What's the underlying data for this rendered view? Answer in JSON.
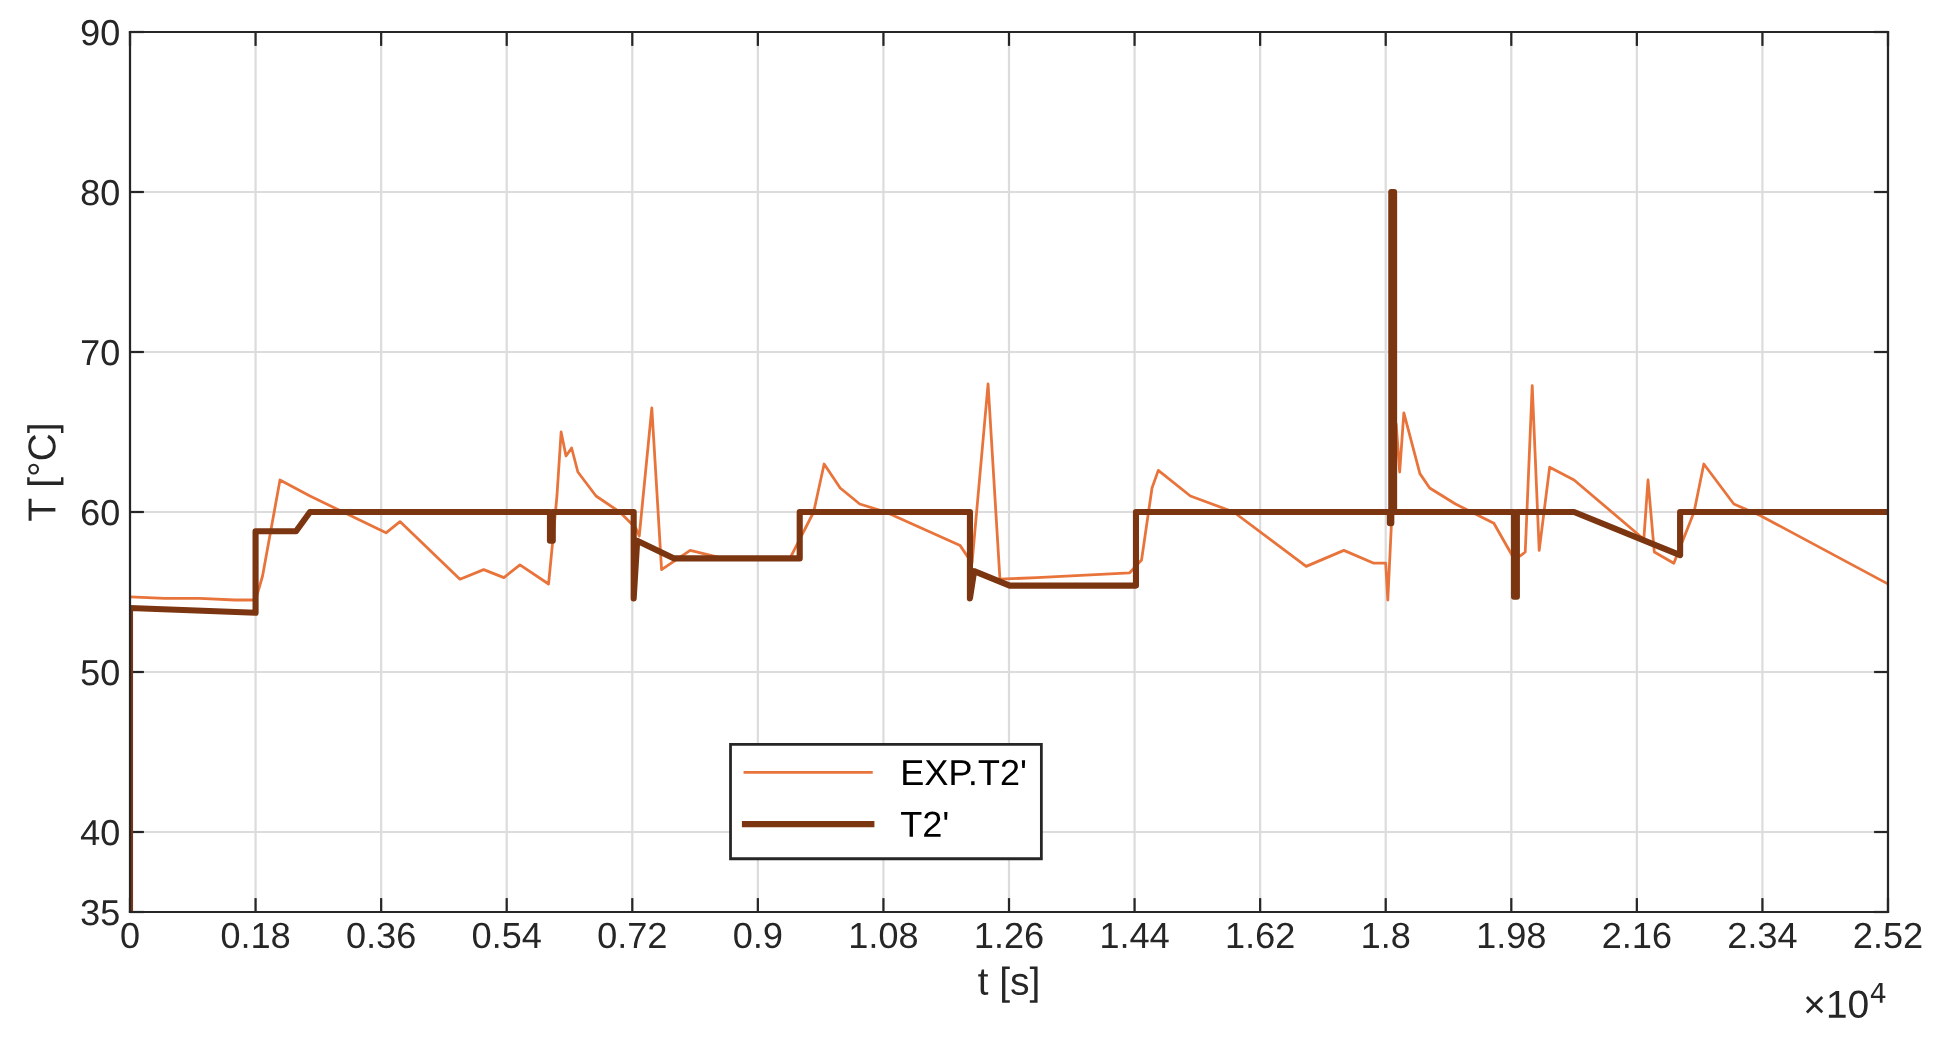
{
  "chart_data": {
    "type": "line",
    "xlabel": "t [s]",
    "ylabel": "T [°C]",
    "annotations": [
      "×10$^{4}$"
    ],
    "xlim": [
      0,
      2.52
    ],
    "xticks": [
      0,
      0.18,
      0.36,
      0.54,
      0.72,
      0.9,
      1.08,
      1.26,
      1.44,
      1.62,
      1.8,
      1.98,
      2.16,
      2.34,
      2.52
    ],
    "ylim": [
      35,
      90
    ],
    "yticks": [
      35,
      40,
      50,
      60,
      70,
      80,
      90
    ],
    "grid": true,
    "legend": "bottom",
    "marker": "none",
    "line_style": "solid",
    "series": [
      {
        "name": "EXP.T2'",
        "color": "#e8743b",
        "x": [
          0,
          0.05,
          0.1,
          0.15,
          0.18,
          0.19,
          0.215,
          0.258,
          0.367,
          0.387,
          0.473,
          0.507,
          0.536,
          0.559,
          0.6,
          0.606,
          0.612,
          0.618,
          0.625,
          0.633,
          0.642,
          0.668,
          0.702,
          0.725,
          0.73,
          0.748,
          0.762,
          0.803,
          0.85,
          0.946,
          0.98,
          0.995,
          1.018,
          1.046,
          1.083,
          1.19,
          1.207,
          1.23,
          1.247,
          1.3,
          1.433,
          1.45,
          1.465,
          1.474,
          1.52,
          1.582,
          1.686,
          1.74,
          1.783,
          1.8,
          1.803,
          1.815,
          1.82,
          1.826,
          1.849,
          1.863,
          1.9,
          1.955,
          1.985,
          2.0,
          2.01,
          2.02,
          2.035,
          2.07,
          2.17,
          2.176,
          2.185,
          2.213,
          2.242,
          2.256,
          2.299,
          2.336,
          2.52
        ],
        "values": [
          54.7,
          54.6,
          54.6,
          54.5,
          54.5,
          56.0,
          62.0,
          61.0,
          58.7,
          59.4,
          55.8,
          56.4,
          55.9,
          56.7,
          55.5,
          58.2,
          61.0,
          65.0,
          63.5,
          64.0,
          62.5,
          61.0,
          60.0,
          59.0,
          58.5,
          66.5,
          56.4,
          57.6,
          57.1,
          57.1,
          60.0,
          63.0,
          61.5,
          60.5,
          60.0,
          57.9,
          56.8,
          68.0,
          55.8,
          55.9,
          56.2,
          57.0,
          61.5,
          62.6,
          61.0,
          60.0,
          56.6,
          57.6,
          56.8,
          56.8,
          54.5,
          65.5,
          62.5,
          66.2,
          62.4,
          61.5,
          60.5,
          59.3,
          57.0,
          57.5,
          67.9,
          57.6,
          62.8,
          62.0,
          58.3,
          62.0,
          57.5,
          56.8,
          60.0,
          63.0,
          60.5,
          59.8,
          55.5
        ]
      },
      {
        "name": "T2'",
        "color": "#7b3510",
        "x": [
          0,
          0,
          0.18,
          0.18,
          0.238,
          0.258,
          0.602,
          0.602,
          0.606,
          0.606,
          0.722,
          0.722,
          0.727,
          0.78,
          0.96,
          0.96,
          1.204,
          1.204,
          1.21,
          1.261,
          1.442,
          1.442,
          1.806,
          1.806,
          1.808,
          1.808,
          1.812,
          1.812,
          1.984,
          1.984,
          1.988,
          1.988,
          2.07,
          2.222,
          2.222,
          2.52
        ],
        "values": [
          35,
          54.0,
          53.7,
          58.8,
          58.8,
          60.0,
          60.0,
          58.2,
          58.2,
          60.0,
          60.0,
          54.6,
          58.2,
          57.1,
          57.1,
          60.0,
          60.0,
          54.6,
          56.3,
          55.4,
          55.4,
          60.0,
          60.0,
          59.3,
          59.3,
          80.0,
          80.0,
          60.0,
          60.0,
          54.7,
          54.7,
          60.0,
          60.0,
          57.3,
          60.0,
          60.0
        ]
      }
    ]
  }
}
